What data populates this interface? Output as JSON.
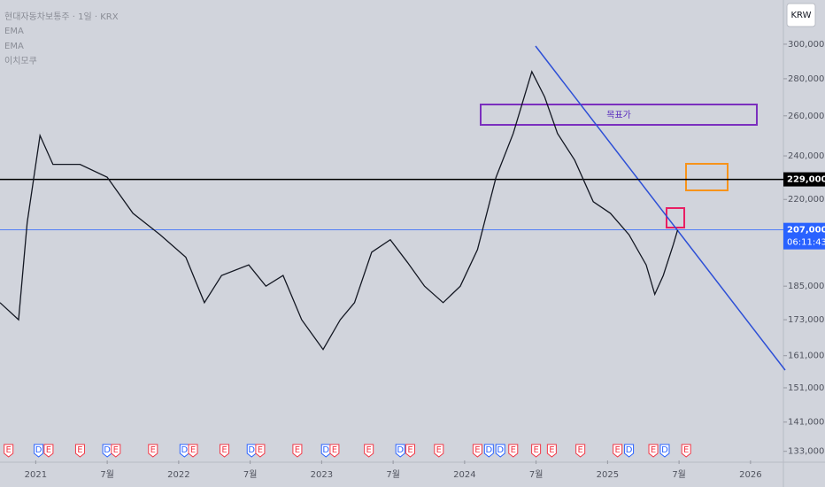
{
  "chart_data": {
    "type": "line",
    "title": "현대자동차보통주 · 1일 · KRX",
    "legend_items": [
      "EMA",
      "EMA",
      "이치모쿠"
    ],
    "currency": "KRW",
    "annotation": "목표가",
    "countdown": "06:11:43",
    "log_y": true,
    "color": "#131722",
    "x": [
      2020.75,
      2020.88,
      2020.94,
      2021.03,
      2021.12,
      2021.31,
      2021.5,
      2021.68,
      2021.87,
      2022.05,
      2022.18,
      2022.3,
      2022.49,
      2022.61,
      2022.73,
      2022.86,
      2023.01,
      2023.13,
      2023.23,
      2023.35,
      2023.48,
      2023.6,
      2023.72,
      2023.85,
      2023.97,
      2024.09,
      2024.22,
      2024.34,
      2024.47,
      2024.56,
      2024.65,
      2024.77,
      2024.9,
      2025.02,
      2025.15,
      2025.27,
      2025.33,
      2025.39,
      2025.46,
      2025.49
    ],
    "values": [
      179000,
      173000,
      210000,
      250000,
      236000,
      236000,
      230000,
      214000,
      205000,
      196000,
      179000,
      189000,
      193000,
      185000,
      189000,
      173000,
      163000,
      173000,
      179000,
      198000,
      203000,
      194000,
      185000,
      179000,
      185000,
      199000,
      230000,
      251000,
      284000,
      270000,
      251000,
      238000,
      219000,
      214000,
      205000,
      193000,
      182000,
      189000,
      201000,
      207000
    ],
    "xlim": [
      2020.75,
      2026.23
    ],
    "xticks": [
      {
        "value": 2021,
        "label": "2021"
      },
      {
        "value": 2021.5,
        "label": "7월"
      },
      {
        "value": 2022,
        "label": "2022"
      },
      {
        "value": 2022.5,
        "label": "7월"
      },
      {
        "value": 2023,
        "label": "2023"
      },
      {
        "value": 2023.5,
        "label": "7월"
      },
      {
        "value": 2024,
        "label": "2024"
      },
      {
        "value": 2024.5,
        "label": "7월"
      },
      {
        "value": 2025,
        "label": "2025"
      },
      {
        "value": 2025.5,
        "label": "7월"
      },
      {
        "value": 2026,
        "label": "2026"
      }
    ],
    "ylim": [
      130600,
      327700
    ],
    "yticks": [
      {
        "value": 300000,
        "label": "300,000"
      },
      {
        "value": 280000,
        "label": "280,000"
      },
      {
        "value": 260000,
        "label": "260,000"
      },
      {
        "value": 240000,
        "label": "240,000"
      },
      {
        "value": 220000,
        "label": "220,000"
      },
      {
        "value": 185000,
        "label": "185,000"
      },
      {
        "value": 173000,
        "label": "173,000"
      },
      {
        "value": 161000,
        "label": "161,000"
      },
      {
        "value": 151000,
        "label": "151,000"
      },
      {
        "value": 141000,
        "label": "141,000"
      },
      {
        "value": 133000,
        "label": "133,000"
      }
    ],
    "hlines": [
      {
        "value": 229000,
        "label": "229,000",
        "color": "#000000"
      },
      {
        "value": 207000,
        "label": "207,000",
        "color": "#2962ff"
      }
    ],
    "event_colors": {
      "E": "#f23645",
      "D": "#2962ff"
    },
    "events": [
      {
        "x": 2020.81,
        "label": "E"
      },
      {
        "x": 2021.02,
        "label": "D"
      },
      {
        "x": 2021.09,
        "label": "E"
      },
      {
        "x": 2021.31,
        "label": "E"
      },
      {
        "x": 2021.5,
        "label": "D"
      },
      {
        "x": 2021.56,
        "label": "E"
      },
      {
        "x": 2021.82,
        "label": "E"
      },
      {
        "x": 2022.04,
        "label": "D"
      },
      {
        "x": 2022.1,
        "label": "E"
      },
      {
        "x": 2022.32,
        "label": "E"
      },
      {
        "x": 2022.51,
        "label": "D"
      },
      {
        "x": 2022.57,
        "label": "E"
      },
      {
        "x": 2022.83,
        "label": "E"
      },
      {
        "x": 2023.03,
        "label": "D"
      },
      {
        "x": 2023.09,
        "label": "E"
      },
      {
        "x": 2023.33,
        "label": "E"
      },
      {
        "x": 2023.55,
        "label": "D"
      },
      {
        "x": 2023.62,
        "label": "E"
      },
      {
        "x": 2023.82,
        "label": "E"
      },
      {
        "x": 2024.09,
        "label": "E"
      },
      {
        "x": 2024.17,
        "label": "D"
      },
      {
        "x": 2024.25,
        "label": "D"
      },
      {
        "x": 2024.34,
        "label": "E"
      },
      {
        "x": 2024.5,
        "label": "E"
      },
      {
        "x": 2024.61,
        "label": "E"
      },
      {
        "x": 2024.81,
        "label": "E"
      },
      {
        "x": 2025.07,
        "label": "E"
      },
      {
        "x": 2025.15,
        "label": "D"
      },
      {
        "x": 2025.32,
        "label": "E"
      },
      {
        "x": 2025.4,
        "label": "D"
      },
      {
        "x": 2025.55,
        "label": "E"
      }
    ]
  }
}
